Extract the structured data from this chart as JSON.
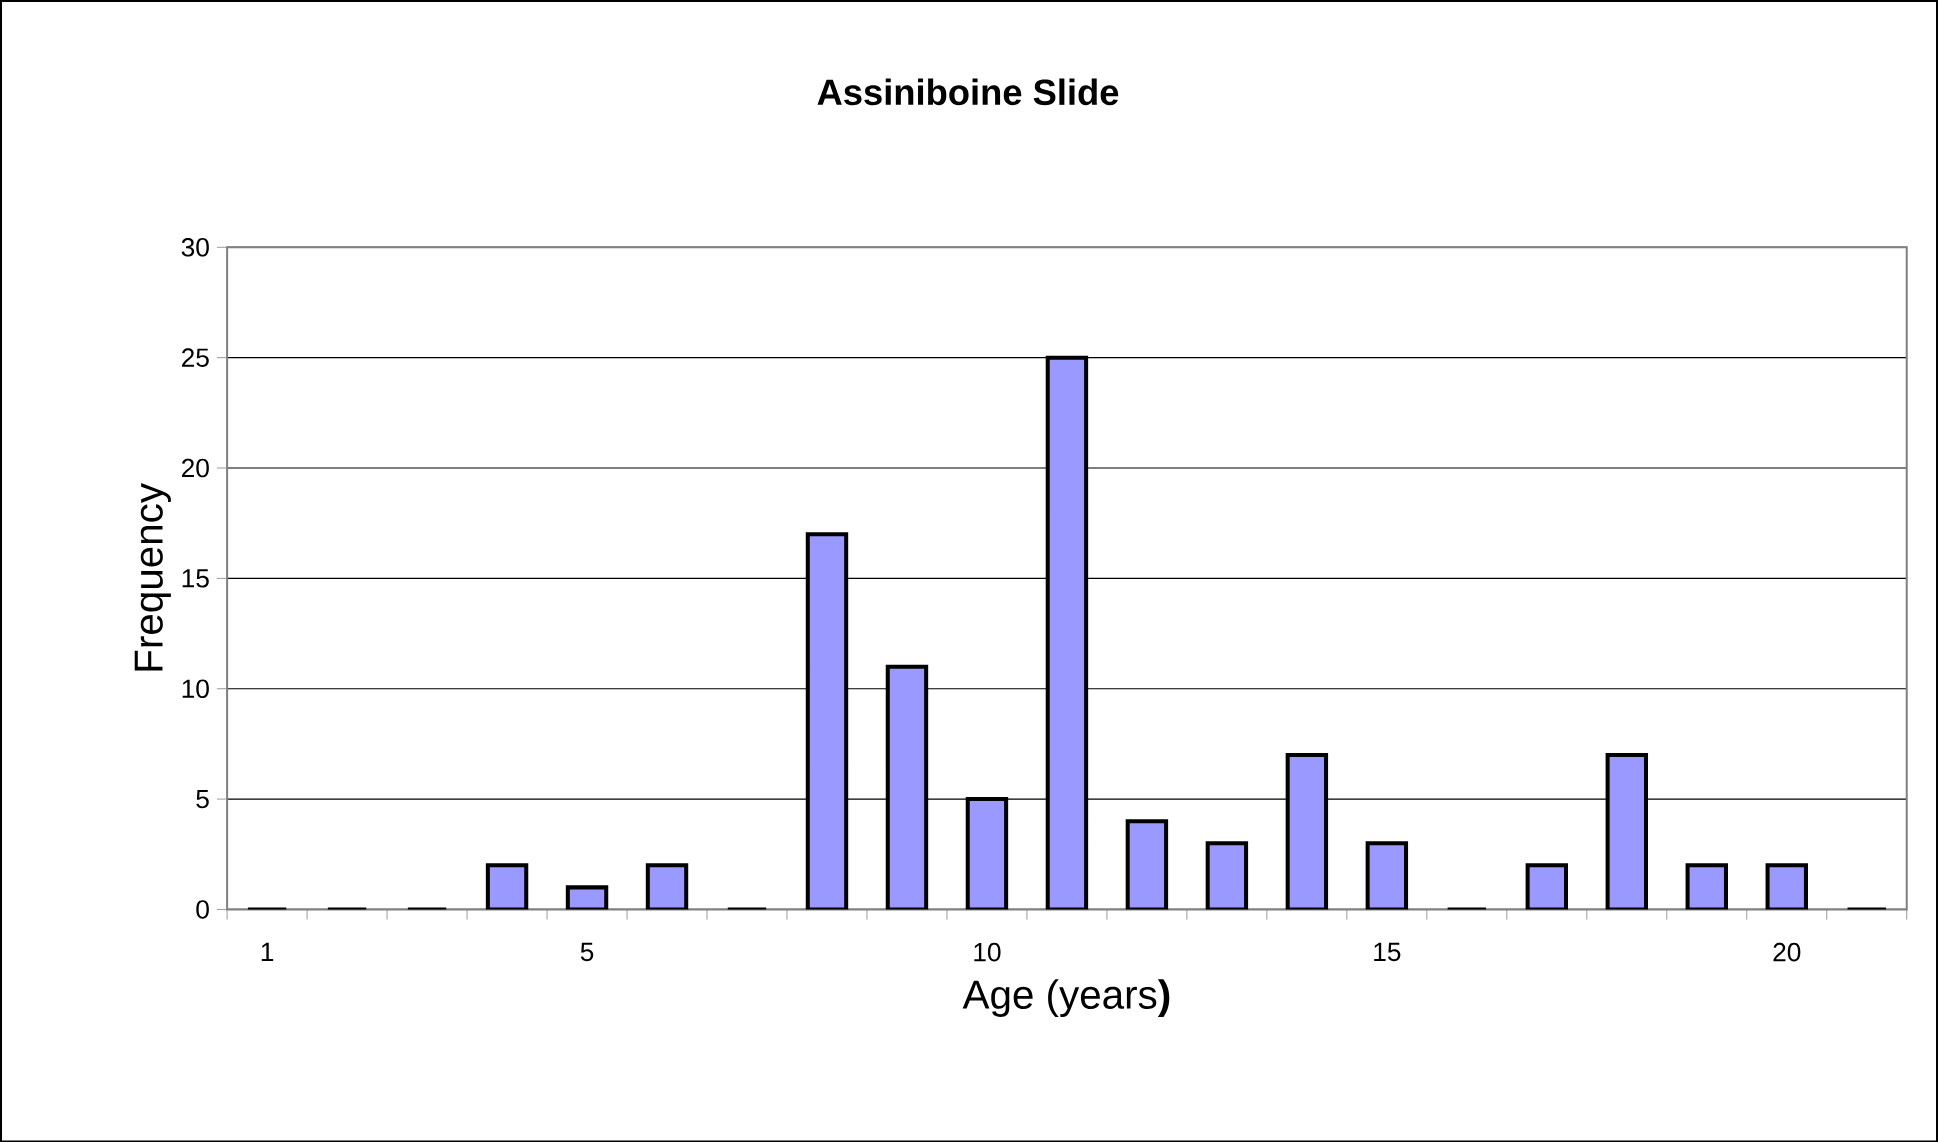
{
  "chart_data": {
    "type": "bar",
    "title": "Assiniboine Slide",
    "xlabel": "Age (years**)**",
    "ylabel": "Frequency",
    "categories": [
      "1",
      null,
      null,
      null,
      "5",
      null,
      null,
      null,
      null,
      "10",
      null,
      null,
      null,
      null,
      "15",
      null,
      null,
      null,
      null,
      "20",
      null
    ],
    "values": [
      0,
      0,
      0,
      2,
      1,
      2,
      0,
      17,
      11,
      5,
      25,
      4,
      3,
      7,
      3,
      0,
      2,
      7,
      2,
      2,
      0
    ],
    "color": "#9999ff",
    "ylim": [
      0,
      30
    ],
    "yticks": [
      0,
      5,
      10,
      15,
      20,
      25,
      30
    ],
    "grid": "y"
  }
}
